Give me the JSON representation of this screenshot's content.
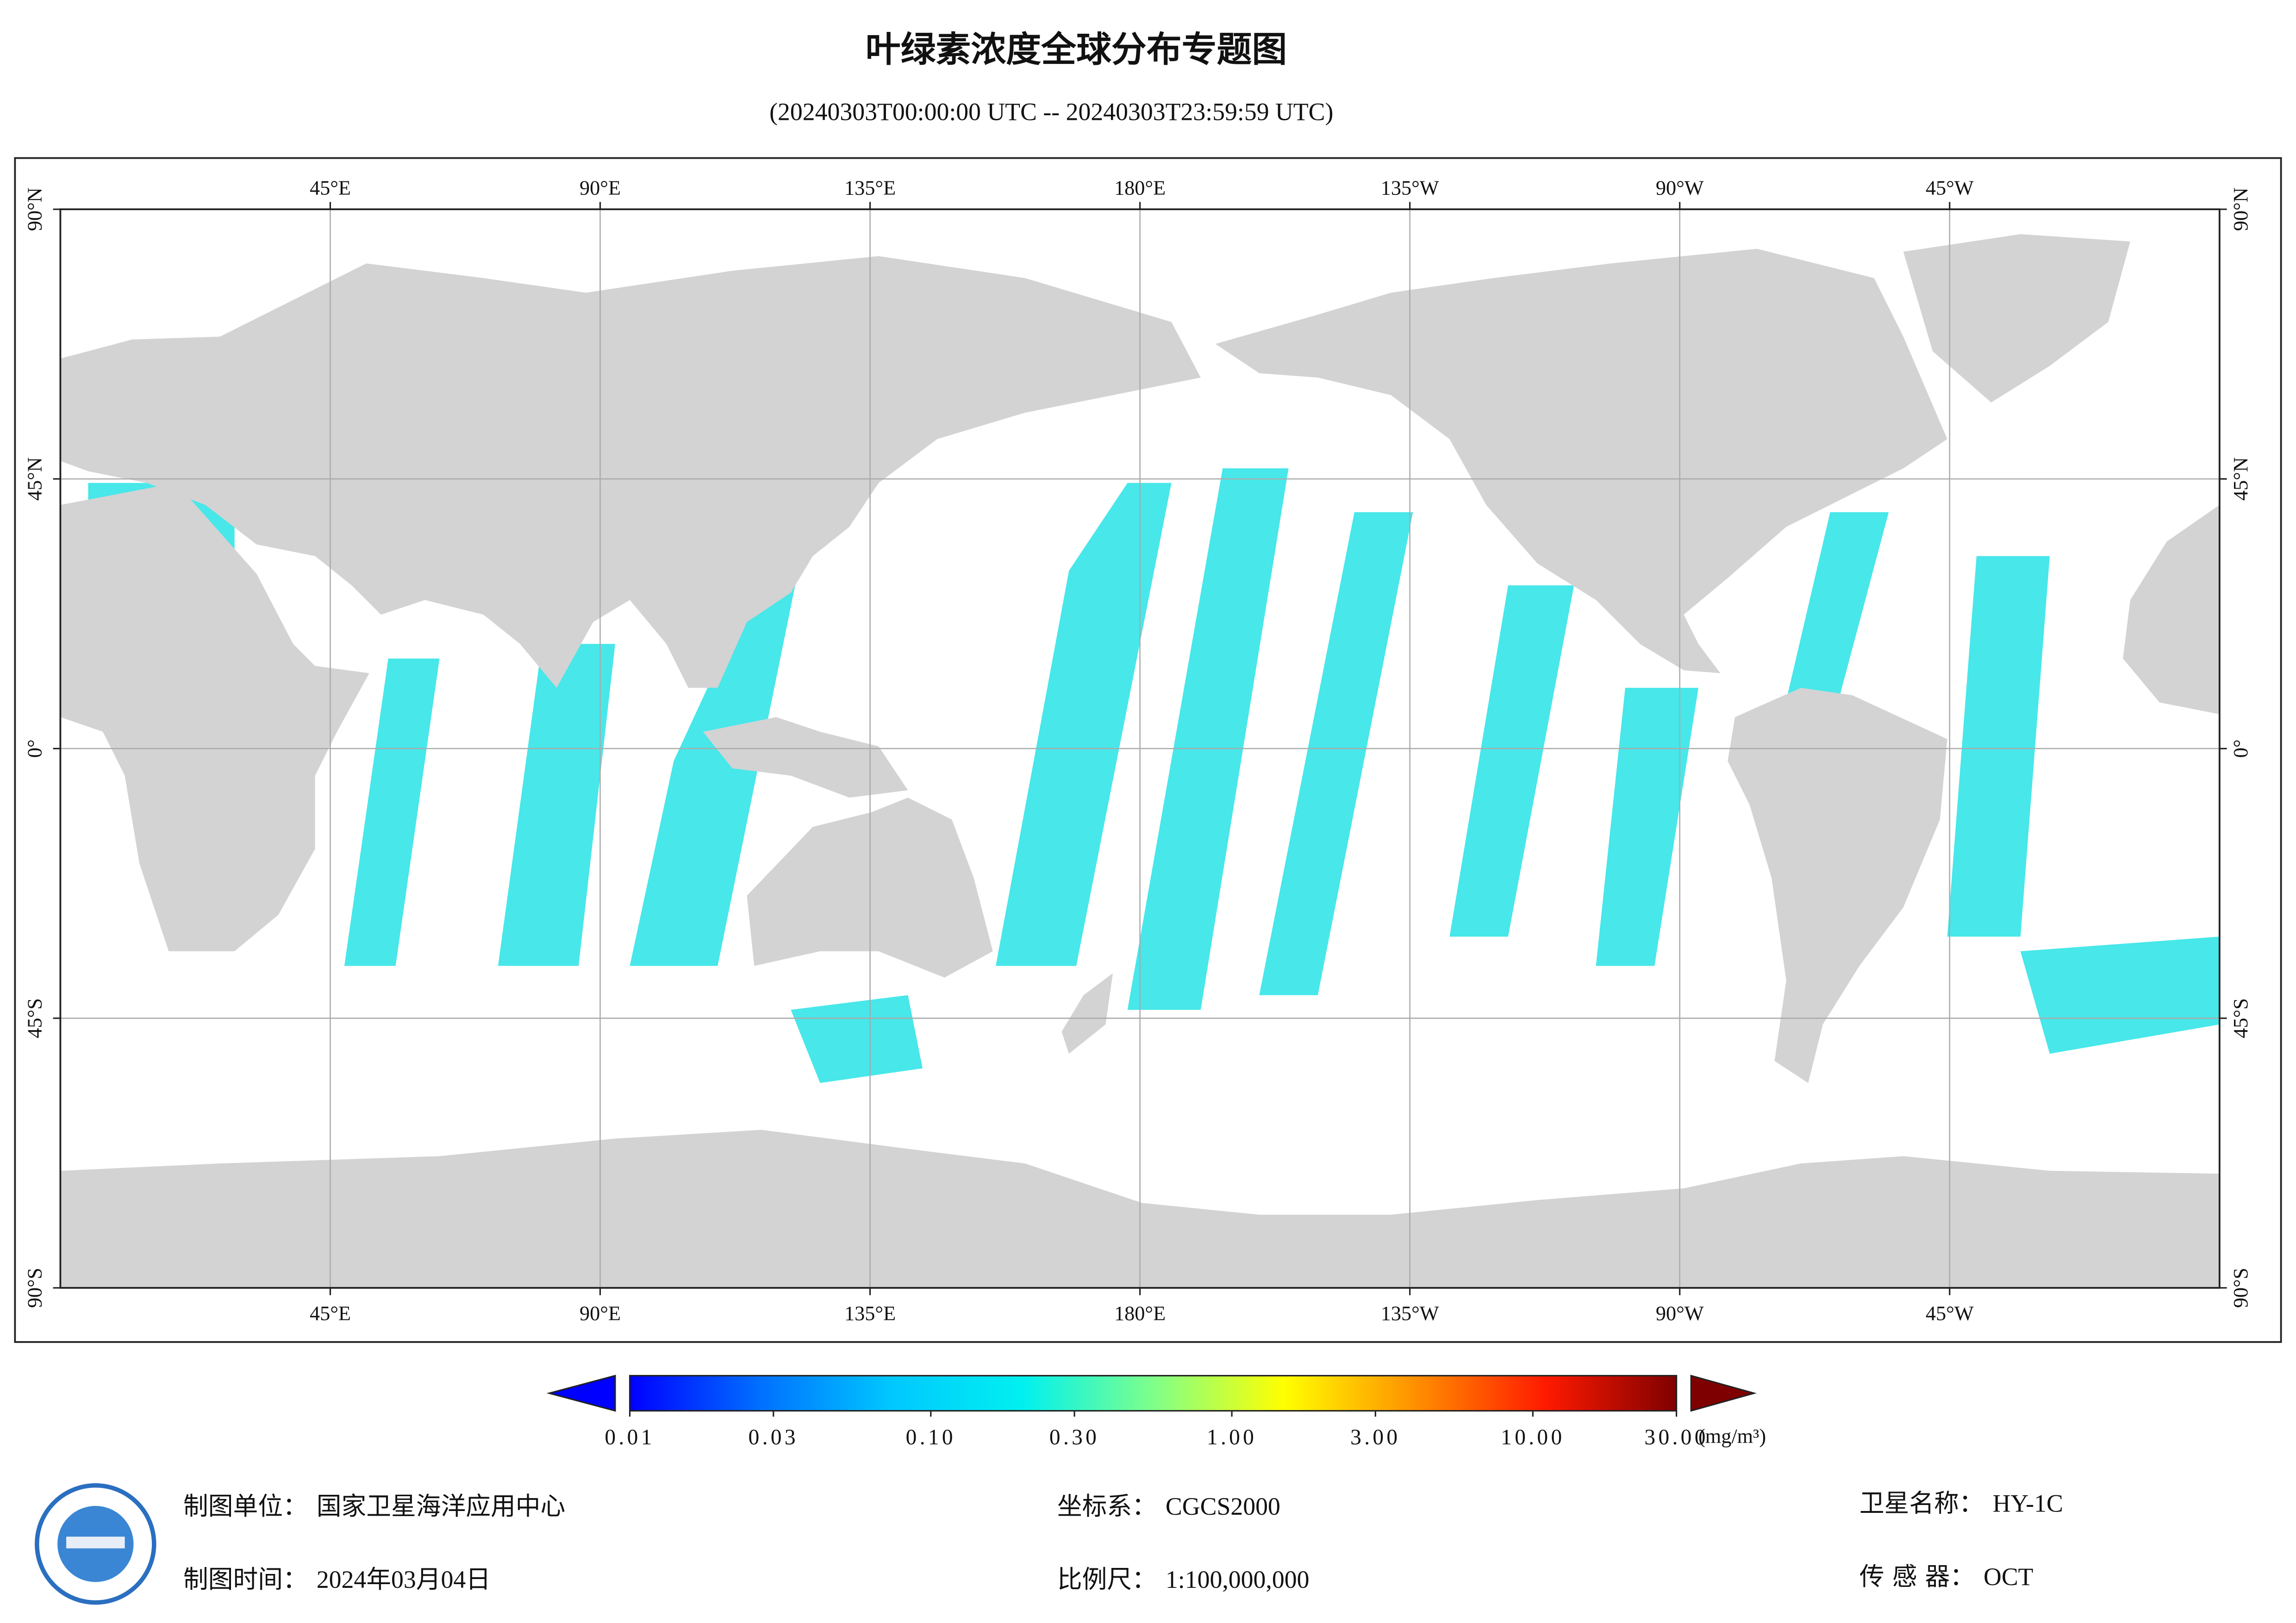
{
  "title": "叶绿素浓度全球分布专题图",
  "subtitle": "(20240303T00:00:00 UTC -- 20240303T23:59:59 UTC)",
  "map": {
    "xlim": [
      0,
      360
    ],
    "ylim": [
      -90,
      90
    ],
    "grid": true,
    "lon_ticks": [
      {
        "value": 45,
        "label": "45°E"
      },
      {
        "value": 90,
        "label": "90°E"
      },
      {
        "value": 135,
        "label": "135°E"
      },
      {
        "value": 180,
        "label": "180°E"
      },
      {
        "value": 225,
        "label": "135°W"
      },
      {
        "value": 270,
        "label": "90°W"
      },
      {
        "value": 315,
        "label": "45°W"
      }
    ],
    "lat_ticks": [
      {
        "value": 90,
        "label": "90°N"
      },
      {
        "value": 45,
        "label": "45°N"
      },
      {
        "value": 0,
        "label": "0°"
      },
      {
        "value": -45,
        "label": "45°S"
      },
      {
        "value": -90,
        "label": "90°S"
      }
    ]
  },
  "colorbar": {
    "scale": "log",
    "lim": [
      0.01,
      30
    ],
    "ticks": [
      {
        "value": 0.01,
        "label": "0.01"
      },
      {
        "value": 0.03,
        "label": "0.03"
      },
      {
        "value": 0.1,
        "label": "0.10"
      },
      {
        "value": 0.3,
        "label": "0.30"
      },
      {
        "value": 1,
        "label": "1.00"
      },
      {
        "value": 3,
        "label": "3.00"
      },
      {
        "value": 10,
        "label": "10.00"
      },
      {
        "value": 30,
        "label": "30.00"
      }
    ],
    "colors": [
      "#0000ff",
      "#0070ff",
      "#00c8ff",
      "#00f0f0",
      "#7fff8a",
      "#ffff00",
      "#ff9000",
      "#ff1a00",
      "#7f0000"
    ],
    "under_color": "#0000ff",
    "over_color": "#7f0000",
    "unit": "(mg/m³)"
  },
  "footer": [
    {
      "label": "制图单位：",
      "value": "国家卫星海洋应用中心"
    },
    {
      "label": "制图时间：",
      "value": "2024年03月04日"
    },
    {
      "label": "坐标系：",
      "value": "CGCS2000"
    },
    {
      "label": "比例尺：",
      "value": "1:100,000,000"
    },
    {
      "label": "卫星名称：",
      "value": "HY-1C"
    },
    {
      "label": "传 感 器：",
      "value": "OCT"
    }
  ]
}
